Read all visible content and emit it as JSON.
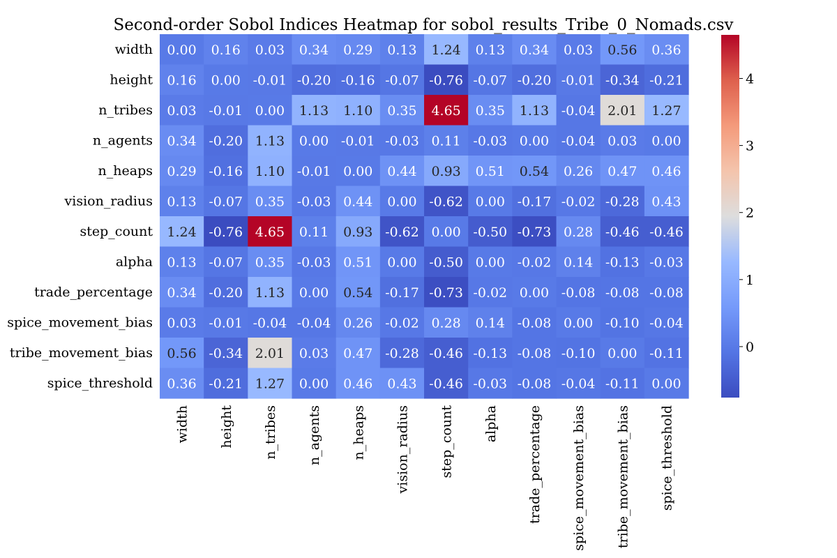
{
  "chart_data": {
    "type": "heatmap",
    "title": "Second-order Sobol Indices Heatmap for sobol_results_Tribe_0_Nomads.csv",
    "xlabel": "",
    "ylabel": "",
    "rows": [
      "width",
      "height",
      "n_tribes",
      "n_agents",
      "n_heaps",
      "vision_radius",
      "step_count",
      "alpha",
      "trade_percentage",
      "spice_movement_bias",
      "tribe_movement_bias",
      "spice_threshold"
    ],
    "columns": [
      "width",
      "height",
      "n_tribes",
      "n_agents",
      "n_heaps",
      "vision_radius",
      "step_count",
      "alpha",
      "trade_percentage",
      "spice_movement_bias",
      "tribe_movement_bias",
      "spice_threshold"
    ],
    "values": [
      [
        0.0,
        0.16,
        0.03,
        0.34,
        0.29,
        0.13,
        1.24,
        0.13,
        0.34,
        0.03,
        0.56,
        0.36
      ],
      [
        0.16,
        0.0,
        -0.01,
        -0.2,
        -0.16,
        -0.07,
        -0.76,
        -0.07,
        -0.2,
        -0.01,
        -0.34,
        -0.21
      ],
      [
        0.03,
        -0.01,
        0.0,
        1.13,
        1.1,
        0.35,
        4.65,
        0.35,
        1.13,
        -0.04,
        2.01,
        1.27
      ],
      [
        0.34,
        -0.2,
        1.13,
        0.0,
        -0.01,
        -0.03,
        0.11,
        -0.03,
        -0.0,
        -0.04,
        0.03,
        0.0
      ],
      [
        0.29,
        -0.16,
        1.1,
        -0.01,
        0.0,
        0.44,
        0.93,
        0.51,
        0.54,
        0.26,
        0.47,
        0.46
      ],
      [
        0.13,
        -0.07,
        0.35,
        -0.03,
        0.44,
        0.0,
        -0.62,
        -0.0,
        -0.17,
        -0.02,
        -0.28,
        0.43
      ],
      [
        1.24,
        -0.76,
        4.65,
        0.11,
        0.93,
        -0.62,
        0.0,
        -0.5,
        -0.73,
        0.28,
        -0.46,
        -0.46
      ],
      [
        0.13,
        -0.07,
        0.35,
        -0.03,
        0.51,
        -0.0,
        -0.5,
        0.0,
        -0.02,
        0.14,
        -0.13,
        -0.03
      ],
      [
        0.34,
        -0.2,
        1.13,
        -0.0,
        0.54,
        -0.17,
        -0.73,
        -0.02,
        0.0,
        -0.08,
        -0.08,
        -0.08
      ],
      [
        0.03,
        -0.01,
        -0.04,
        -0.04,
        0.26,
        -0.02,
        0.28,
        0.14,
        -0.08,
        0.0,
        -0.1,
        -0.04
      ],
      [
        0.56,
        -0.34,
        2.01,
        0.03,
        0.47,
        -0.28,
        -0.46,
        -0.13,
        -0.08,
        -0.1,
        0.0,
        -0.11
      ],
      [
        0.36,
        -0.21,
        1.27,
        0.0,
        0.46,
        0.43,
        -0.46,
        -0.03,
        -0.08,
        -0.04,
        -0.11,
        0.0
      ]
    ],
    "value_format": "2 decimals",
    "colormap": "coolwarm",
    "vmin": -0.76,
    "vmax": 4.65,
    "colorbar_ticks": [
      0,
      1,
      2,
      3,
      4
    ],
    "colorbar": true,
    "grid": false
  }
}
